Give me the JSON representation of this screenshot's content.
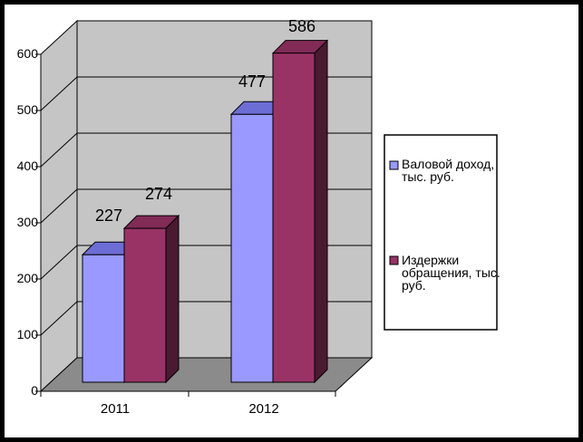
{
  "chart_data": {
    "type": "bar",
    "view": "3d-clustered-column",
    "title": "",
    "xlabel": "",
    "ylabel": "",
    "categories": [
      "2011",
      "2012"
    ],
    "series": [
      {
        "name": "Валовой доход, тыс. руб.",
        "color": "#9999FF",
        "values": [
          227,
          477
        ]
      },
      {
        "name": "Издержки обращения, тыс. руб.",
        "color": "#993366",
        "values": [
          274,
          586
        ]
      }
    ],
    "data_labels": [
      227,
      274,
      477,
      586
    ],
    "yticks": [
      "0",
      "100",
      "200",
      "300",
      "400",
      "500",
      "600"
    ],
    "ylim": [
      0,
      600
    ],
    "grid": true,
    "legend_position": "right"
  },
  "legend": {
    "items": [
      {
        "label": "Валовой доход, тыс. руб.",
        "lines": [
          "Валовой доход,",
          "тыс. руб."
        ],
        "color": "#9999FF"
      },
      {
        "label": "Издержки обращения, тыс. руб.",
        "lines": [
          "Издержки",
          "обращения, тыс.",
          "руб."
        ],
        "color": "#993366"
      }
    ]
  },
  "colors": {
    "frame_border": "#000000",
    "background": "#FFFFFF",
    "wall": "#C6C5C6",
    "floor": "#8C8B8C",
    "gridline": "#000000",
    "series1_front": "#9999FF",
    "series1_top": "#6D6DD6",
    "series1_side": "#55559E",
    "series2_front": "#993366",
    "series2_top": "#822B57",
    "series2_side": "#4A1A31"
  }
}
